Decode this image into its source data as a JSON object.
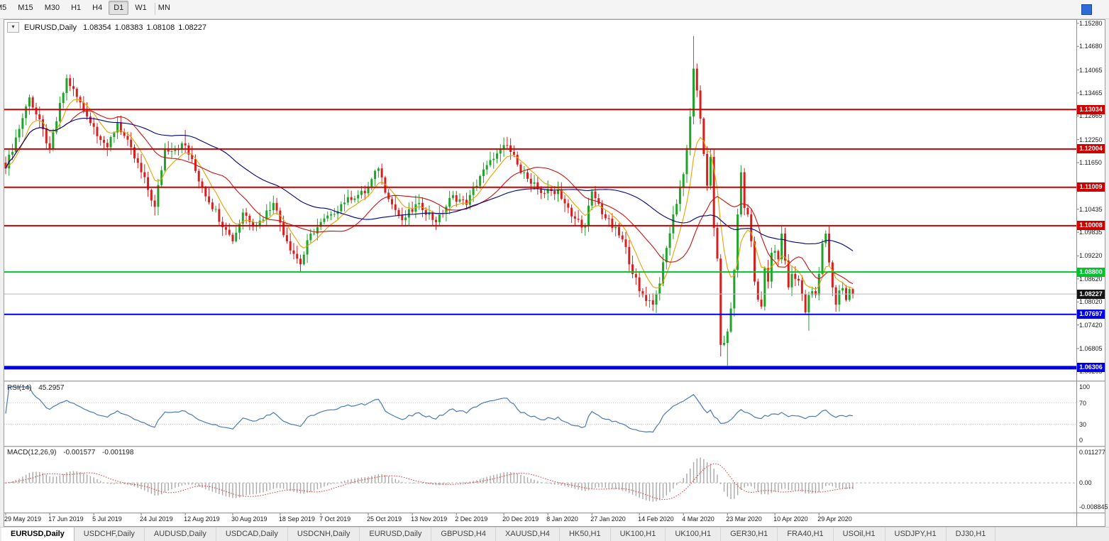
{
  "icons": {
    "one_click_trading": "▾"
  },
  "toolbar": {
    "periods": [
      "M5",
      "M15",
      "M30",
      "H1",
      "H4",
      "D1",
      "W1",
      "MN"
    ],
    "active_period": "D1"
  },
  "header": {
    "symbol": "EURUSD,Daily",
    "open": "1.08354",
    "high": "1.08383",
    "low": "1.08108",
    "close": "1.08227"
  },
  "chart_data": {
    "type": "candlestick",
    "symbol": "EURUSD",
    "timeframe": "Daily",
    "ylim": [
      1.0599,
      1.1537
    ],
    "price_ticks": [
      "1.15280",
      "1.14680",
      "1.14065",
      "1.13465",
      "1.12865",
      "1.12250",
      "1.11650",
      "1.11035",
      "1.10435",
      "1.09835",
      "1.09220",
      "1.08620",
      "1.08020",
      "1.07420",
      "1.06805",
      "1.06205"
    ],
    "date_labels": [
      {
        "text": "29 May 2019",
        "i": 0
      },
      {
        "text": "17 Jun 2019",
        "i": 13
      },
      {
        "text": "5 Jul 2019",
        "i": 26
      },
      {
        "text": "24 Jul 2019",
        "i": 40
      },
      {
        "text": "12 Aug 2019",
        "i": 53
      },
      {
        "text": "30 Aug 2019",
        "i": 67
      },
      {
        "text": "18 Sep 2019",
        "i": 81
      },
      {
        "text": "7 Oct 2019",
        "i": 93
      },
      {
        "text": "25 Oct 2019",
        "i": 107
      },
      {
        "text": "13 Nov 2019",
        "i": 120
      },
      {
        "text": "2 Dec 2019",
        "i": 133
      },
      {
        "text": "20 Dec 2019",
        "i": 147
      },
      {
        "text": "8 Jan 2020",
        "i": 160
      },
      {
        "text": "27 Jan 2020",
        "i": 173
      },
      {
        "text": "14 Feb 2020",
        "i": 187
      },
      {
        "text": "4 Mar 2020",
        "i": 200
      },
      {
        "text": "23 Mar 2020",
        "i": 213
      },
      {
        "text": "10 Apr 2020",
        "i": 227
      },
      {
        "text": "29 Apr 2020",
        "i": 240
      }
    ],
    "candles": {
      "count": 251,
      "up_color": "#1fa32b",
      "down_color": "#d62020",
      "anchors": [
        [
          0,
          1.115
        ],
        [
          7,
          1.1335
        ],
        [
          13,
          1.12
        ],
        [
          18,
          1.1385
        ],
        [
          24,
          1.1285
        ],
        [
          30,
          1.1205
        ],
        [
          33,
          1.127
        ],
        [
          40,
          1.114
        ],
        [
          44,
          1.105
        ],
        [
          47,
          1.12
        ],
        [
          53,
          1.121
        ],
        [
          58,
          1.11
        ],
        [
          65,
          1.099
        ],
        [
          67,
          1.096
        ],
        [
          70,
          1.1035
        ],
        [
          74,
          1.1
        ],
        [
          79,
          1.106
        ],
        [
          83,
          1.096
        ],
        [
          87,
          1.09
        ],
        [
          90,
          1.098
        ],
        [
          96,
          1.103
        ],
        [
          101,
          1.1075
        ],
        [
          106,
          1.1085
        ],
        [
          110,
          1.115
        ],
        [
          113,
          1.107
        ],
        [
          117,
          1.1015
        ],
        [
          122,
          1.106
        ],
        [
          127,
          1.101
        ],
        [
          132,
          1.108
        ],
        [
          136,
          1.1055
        ],
        [
          140,
          1.113
        ],
        [
          144,
          1.1175
        ],
        [
          148,
          1.121
        ],
        [
          151,
          1.116
        ],
        [
          155,
          1.111
        ],
        [
          159,
          1.1085
        ],
        [
          163,
          1.1095
        ],
        [
          167,
          1.1025
        ],
        [
          171,
          1.1
        ],
        [
          173,
          1.109
        ],
        [
          177,
          1.102
        ],
        [
          182,
          1.0965
        ],
        [
          187,
          1.083
        ],
        [
          191,
          1.0795
        ],
        [
          193,
          1.085
        ],
        [
          197,
          1.103
        ],
        [
          200,
          1.1135
        ],
        [
          202,
          1.1285
        ],
        [
          203,
          1.141
        ],
        [
          205,
          1.128
        ],
        [
          207,
          1.1105
        ],
        [
          208,
          1.118
        ],
        [
          209,
          1.0995
        ],
        [
          210,
          1.0915
        ],
        [
          211,
          1.069
        ],
        [
          212,
          1.0695
        ],
        [
          213,
          1.0725
        ],
        [
          214,
          1.0785
        ],
        [
          215,
          1.0885
        ],
        [
          216,
          1.103
        ],
        [
          217,
          1.114
        ],
        [
          218,
          1.1047
        ],
        [
          219,
          1.103
        ],
        [
          220,
          1.096
        ],
        [
          221,
          1.0855
        ],
        [
          222,
          1.0808
        ],
        [
          223,
          1.079
        ],
        [
          224,
          1.089
        ],
        [
          225,
          1.0855
        ],
        [
          226,
          1.093
        ],
        [
          227,
          1.0935
        ],
        [
          228,
          1.0913
        ],
        [
          229,
          1.098
        ],
        [
          230,
          1.091
        ],
        [
          231,
          1.084
        ],
        [
          232,
          1.0875
        ],
        [
          233,
          1.0862
        ],
        [
          234,
          1.0858
        ],
        [
          235,
          1.0822
        ],
        [
          236,
          1.0775
        ],
        [
          237,
          1.082
        ],
        [
          238,
          1.083
        ],
        [
          239,
          1.082
        ],
        [
          240,
          1.0875
        ],
        [
          241,
          1.0955
        ],
        [
          242,
          1.098
        ],
        [
          243,
          1.0905
        ],
        [
          244,
          1.084
        ],
        [
          245,
          1.0795
        ],
        [
          246,
          1.0832
        ],
        [
          247,
          1.0838
        ],
        [
          248,
          1.0807
        ],
        [
          249,
          1.08354
        ],
        [
          250,
          1.08227
        ]
      ],
      "high_overrides": {
        "18": 1.1395,
        "53": 1.125,
        "203": 1.1495,
        "250": 1.08383
      },
      "low_overrides": {
        "44": 1.1027,
        "87": 1.0879,
        "191": 1.0778,
        "211": 1.066,
        "213": 1.0636,
        "237": 1.0727,
        "250": 1.08108
      }
    },
    "moving_averages": [
      {
        "period": 8,
        "method": "ema",
        "color": "#e8a200",
        "name": "ma-fast-line"
      },
      {
        "period": 20,
        "method": "sma",
        "color": "#cc1111",
        "name": "ma-medium-line"
      },
      {
        "period": 50,
        "method": "sma",
        "color": "#000080",
        "name": "ma-slow-line"
      }
    ],
    "levels": [
      {
        "value": "1.13034",
        "price": 1.13034,
        "color": "#cc0000",
        "width": 2
      },
      {
        "value": "1.12004",
        "price": 1.12004,
        "color": "#cc0000",
        "width": 2
      },
      {
        "value": "1.11009",
        "price": 1.11009,
        "color": "#cc0000",
        "width": 2
      },
      {
        "value": "1.10008",
        "price": 1.10008,
        "color": "#cc0000",
        "width": 2
      },
      {
        "value": "1.08800",
        "price": 1.088,
        "color": "#00c22b",
        "width": 2
      },
      {
        "value": "1.07697",
        "price": 1.07697,
        "color": "#0000e6",
        "width": 2
      },
      {
        "value": "1.06306",
        "price": 1.06306,
        "color": "#0000e6",
        "width": 5
      }
    ],
    "current_price": {
      "value": "1.08227",
      "price": 1.08227,
      "line_color": "#b9b9b9",
      "badge_bg": "#141414"
    },
    "rsi": {
      "name": "RSI(14)",
      "value": "45.2957",
      "line_color": "#4a7ab5",
      "scale": [
        "100",
        "70",
        "30",
        "0"
      ],
      "guide_levels": [
        70,
        30
      ],
      "ylim": [
        0,
        100
      ]
    },
    "macd": {
      "name": "MACD(12,26,9)",
      "value_main": "-0.001577",
      "value_signal": "-0.001198",
      "hist_color": "#a9a9a9",
      "signal_color": "#e03131",
      "scale": [
        "0.011277",
        "0.00",
        "-0.008845"
      ],
      "ylim": [
        -0.008845,
        0.011277
      ]
    }
  },
  "tabs": [
    {
      "label": "EURUSD,Daily",
      "active": true
    },
    {
      "label": "USDCHF,Daily"
    },
    {
      "label": "AUDUSD,Daily"
    },
    {
      "label": "USDCAD,Daily"
    },
    {
      "label": "USDCNH,Daily"
    },
    {
      "label": "EURUSD,Daily"
    },
    {
      "label": "GBPUSD,H4"
    },
    {
      "label": "XAUUSD,H4"
    },
    {
      "label": "HK50,H1"
    },
    {
      "label": "UK100,H1"
    },
    {
      "label": "UK100,H1"
    },
    {
      "label": "GER30,H1"
    },
    {
      "label": "FRA40,H1"
    },
    {
      "label": "USOil,H1"
    },
    {
      "label": "USDJPY,H1"
    },
    {
      "label": "DJ30,H1"
    }
  ]
}
